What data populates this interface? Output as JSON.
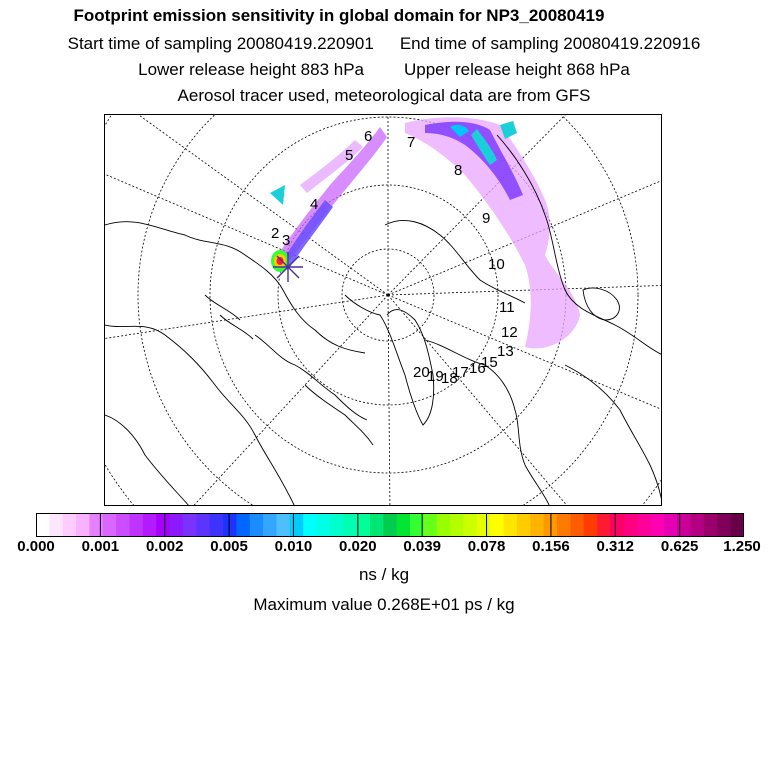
{
  "header": {
    "title": "Footprint emission sensitivity in global domain for NP3_20080419",
    "start_time": "Start time of sampling 20080419.220901",
    "end_time": "End time of sampling 20080419.220916",
    "lower_height": "Lower release height  883 hPa",
    "upper_height": "Upper release height  868 hPa",
    "tracer_note": "Aerosol tracer used, meteorological data are from GFS"
  },
  "map": {
    "projection": "north-polar-stereographic",
    "track_labels": [
      "2",
      "3",
      "4",
      "5",
      "6",
      "7",
      "8",
      "9",
      "10",
      "11",
      "12",
      "13",
      "15",
      "16",
      "17",
      "18",
      "19",
      "20"
    ],
    "release_marker": "star"
  },
  "colorbar": {
    "tick_labels": [
      "0.000",
      "0.001",
      "0.002",
      "0.005",
      "0.010",
      "0.020",
      "0.039",
      "0.078",
      "0.156",
      "0.312",
      "0.625",
      "1.250"
    ],
    "colors": [
      "#ffffff",
      "#ffe6ff",
      "#ffccff",
      "#f7b3ff",
      "#e680ff",
      "#d966ff",
      "#cc4dff",
      "#bf33ff",
      "#b31aff",
      "#a600ff",
      "#8c1aff",
      "#7a33ff",
      "#5c33ff",
      "#3d33ff",
      "#1f33ff",
      "#0066ff",
      "#1a8cff",
      "#33a6ff",
      "#4dbfff",
      "#00ccff",
      "#00ffff",
      "#00ffe6",
      "#00ffcc",
      "#00ffb3",
      "#00ff99",
      "#00e673",
      "#00cc4d",
      "#00e633",
      "#33ff33",
      "#66ff1a",
      "#99ff00",
      "#b3ff00",
      "#ccff00",
      "#e6ff00",
      "#ffff00",
      "#ffe600",
      "#ffcc00",
      "#ffb300",
      "#ff9900",
      "#ff7a00",
      "#ff5c00",
      "#ff3d00",
      "#ff1a33",
      "#ff0066",
      "#ff0080",
      "#ff0099",
      "#ff00b3",
      "#e600b3",
      "#cc0099",
      "#b30080",
      "#99006b",
      "#800059",
      "#660047"
    ],
    "units": "ns / kg"
  },
  "footer": {
    "max_value": "Maximum value  0.268E+01 ps / kg"
  }
}
